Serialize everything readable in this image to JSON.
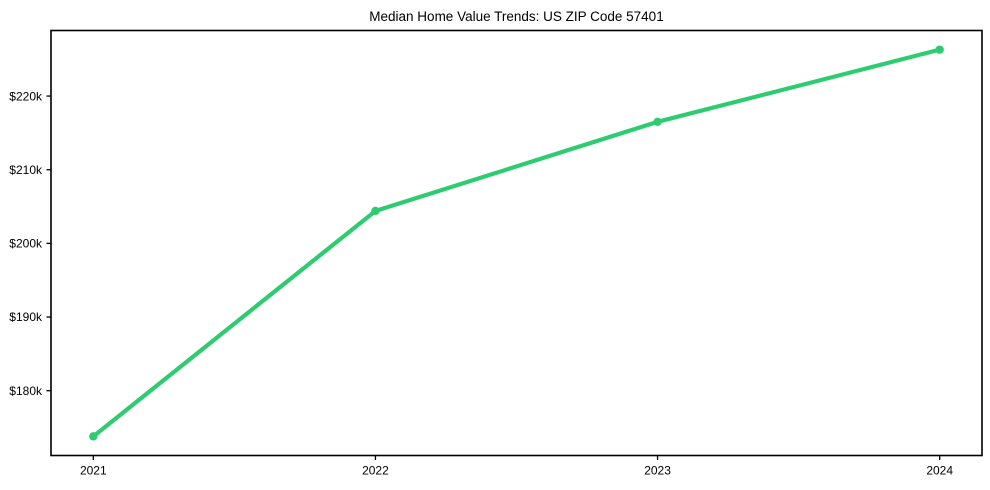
{
  "chart_data": {
    "type": "line",
    "title": "Median Home Value Trends: US ZIP Code 57401",
    "x": [
      2021,
      2022,
      2023,
      2024
    ],
    "series": [
      {
        "name": "Median Home Value",
        "values": [
          173800,
          204400,
          216500,
          226300
        ]
      }
    ],
    "xlabel": "",
    "ylabel": "",
    "x_ticks": [
      {
        "value": 2021,
        "label": "2021"
      },
      {
        "value": 2022,
        "label": "2022"
      },
      {
        "value": 2023,
        "label": "2023"
      },
      {
        "value": 2024,
        "label": "2024"
      }
    ],
    "y_ticks": [
      {
        "value": 180000,
        "label": "$180k"
      },
      {
        "value": 190000,
        "label": "$190k"
      },
      {
        "value": 200000,
        "label": "$200k"
      },
      {
        "value": 210000,
        "label": "$210k"
      },
      {
        "value": 220000,
        "label": "$220k"
      }
    ],
    "xlim": [
      2020.85,
      2024.15
    ],
    "ylim": [
      171200,
      228900
    ],
    "grid": false,
    "legend": false,
    "marker": "circle",
    "line_color": "#2ecc71",
    "frame_color": "#000000",
    "text_color": "#000000",
    "background": "#ffffff"
  }
}
